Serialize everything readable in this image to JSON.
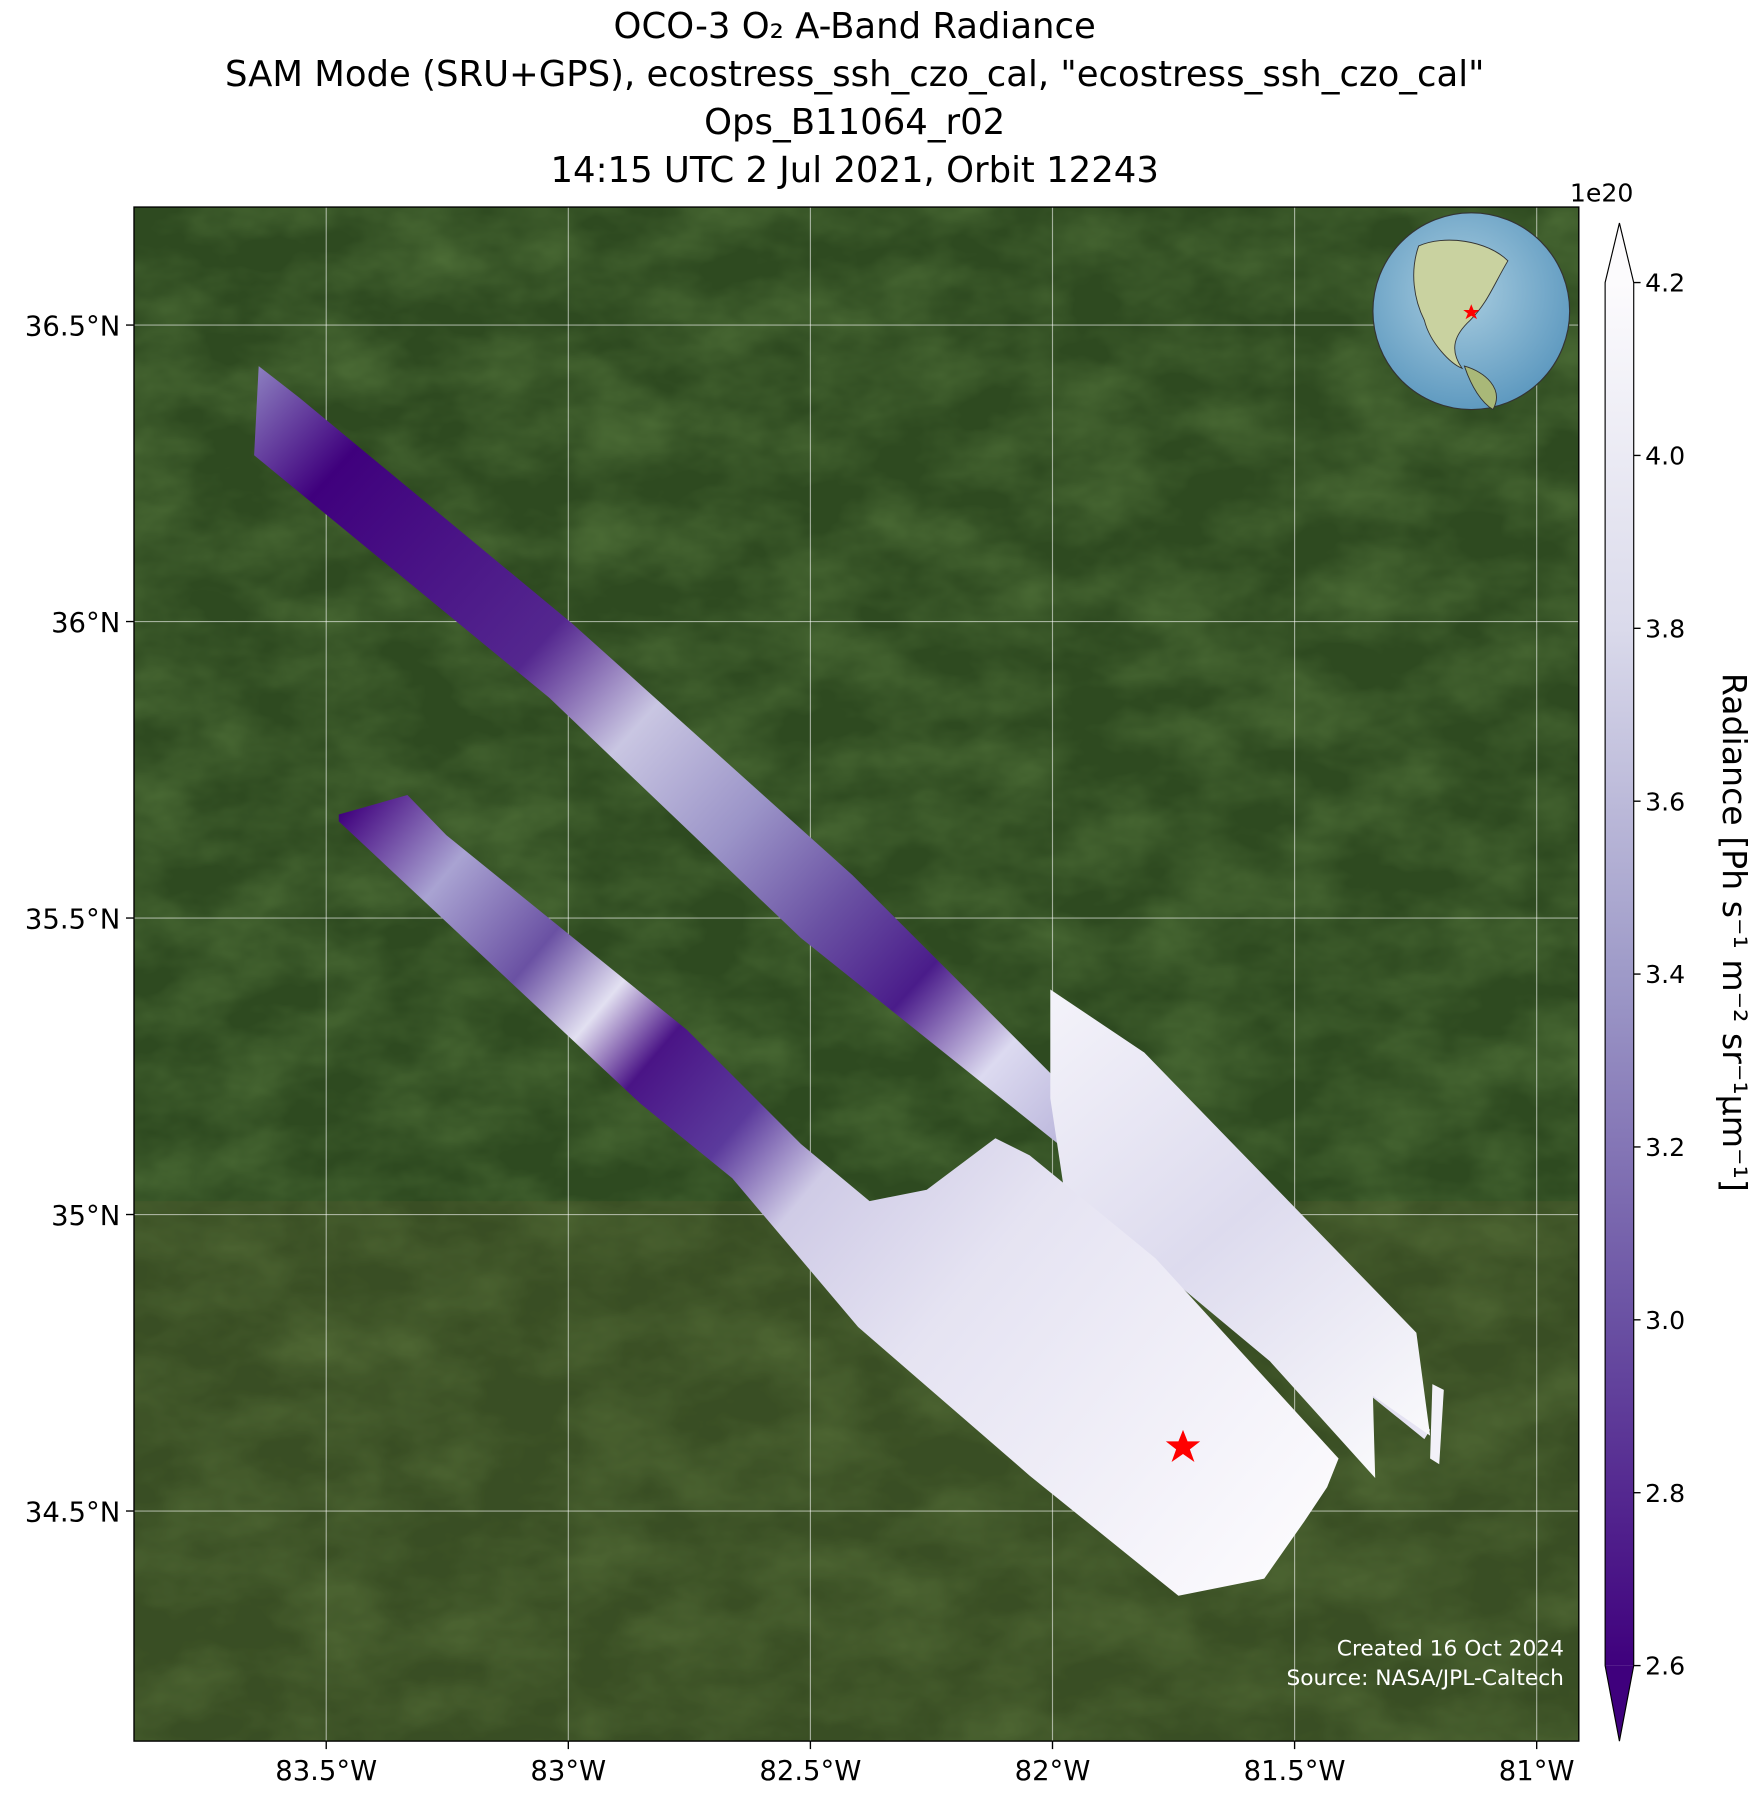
{
  "chart_data": {
    "type": "map",
    "title": [
      "OCO-3 O₂ A-Band Radiance",
      "SAM Mode (SRU+GPS), ecostress_ssh_czo_cal, \"ecostress_ssh_czo_cal\"",
      "Ops_B11064_r02",
      "14:15 UTC 2 Jul 2021, Orbit 12243"
    ],
    "xlim": [
      -83.897,
      -80.913
    ],
    "xticks": [
      {
        "value": -83.5,
        "label": "83.5°W"
      },
      {
        "value": -83,
        "label": "83°W"
      },
      {
        "value": -82.5,
        "label": "82.5°W"
      },
      {
        "value": -82,
        "label": "82°W"
      },
      {
        "value": -81.5,
        "label": "81.5°W"
      },
      {
        "value": -81,
        "label": "81°W"
      }
    ],
    "ylim": [
      34.112,
      36.699
    ],
    "yticks": [
      {
        "value": 34.5,
        "label": "34.5°N"
      },
      {
        "value": 35,
        "label": "35°N"
      },
      {
        "value": 35.5,
        "label": "35.5°N"
      },
      {
        "value": 36,
        "label": "36°N"
      },
      {
        "value": 36.5,
        "label": "36.5°N"
      }
    ],
    "grid": true,
    "colorbar": {
      "label": "Radiance [Ph s⁻¹ m⁻² sr⁻¹μm⁻¹]",
      "offset_label": "1e20",
      "clim": [
        2.6,
        4.2
      ],
      "ticks": [
        2.6,
        2.8,
        {
          "value": 3,
          "label": "3.0"
        },
        3.2,
        3.4,
        3.6,
        3.8,
        {
          "value": 4,
          "label": "4.0"
        },
        4.2
      ],
      "extend": "both",
      "colors": [
        "#3f007d",
        "#6a51a3",
        "#9e9ac8",
        "#dadaeb",
        "#fcfbfd"
      ]
    },
    "annotations": [
      "Created 16 Oct 2024",
      "Source: NASA/JPL-Caltech"
    ]
  }
}
